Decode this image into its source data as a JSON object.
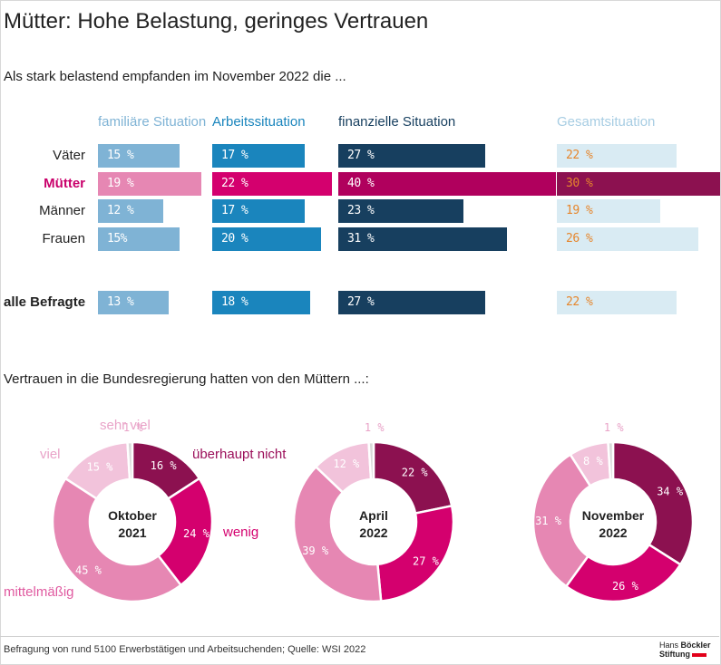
{
  "title": "Mütter: Hohe Belastung, geringes Vertrauen",
  "subtitle": "Als stark belastend empfanden im November 2022 die ...",
  "subtitle2": "Vertrauen in die Bundesregierung hatten von den Müttern ...:",
  "source": "Befragung von rund 5100 Erwerbstätigen und Arbeitsuchenden; Quelle: WSI 2022",
  "logo": {
    "line1a": "Hans ",
    "line1b": "Böckler",
    "line2": "Stiftung"
  },
  "colors": {
    "fam": "#7fb3d5",
    "fam_accent": "#e687b3",
    "arb": "#1a85bd",
    "arb_accent": "#d4006e",
    "fin": "#173f5f",
    "fin_accent": "#b0005d",
    "ges": "#d9ebf3",
    "ges_accent": "#8c1150",
    "ges_text": "#e6862c",
    "label_accent": "#c9006b"
  },
  "chart_data": [
    {
      "type": "bar",
      "categories": [
        "familiäre Situation",
        "Arbeitssituation",
        "finanzielle Situation",
        "Gesamtsituation"
      ],
      "rows": [
        {
          "label": "Väter",
          "values": [
            15,
            17,
            27,
            22
          ],
          "texts": [
            "15 %",
            "17 %",
            "27 %",
            "22 %"
          ]
        },
        {
          "label": "Mütter",
          "values": [
            19,
            22,
            40,
            30
          ],
          "texts": [
            "19 %",
            "22 %",
            "40 %",
            "30 %"
          ]
        },
        {
          "label": "Männer",
          "values": [
            12,
            17,
            23,
            19
          ],
          "texts": [
            "12 %",
            "17 %",
            "23 %",
            "19 %"
          ]
        },
        {
          "label": "Frauen",
          "values": [
            15,
            20,
            31,
            26
          ],
          "texts": [
            "15%",
            "20 %",
            "31 %",
            "26 %"
          ]
        },
        {
          "label": "alle Befragte",
          "values": [
            13,
            18,
            27,
            22
          ],
          "texts": [
            "13 %",
            "18 %",
            "27 %",
            "22 %"
          ]
        }
      ],
      "unit": "%"
    },
    {
      "type": "pie",
      "charts": [
        {
          "label_line1": "Oktober",
          "label_line2": "2021",
          "values": [
            16,
            24,
            45,
            15,
            1
          ],
          "texts": [
            "16 %",
            "24 %",
            "45 %",
            "15 %",
            "1 %"
          ]
        },
        {
          "label_line1": "April",
          "label_line2": "2022",
          "values": [
            22,
            27,
            39,
            12,
            1
          ],
          "texts": [
            "22 %",
            "27 %",
            "39 %",
            "12 %",
            "1 %"
          ]
        },
        {
          "label_line1": "November",
          "label_line2": "2022",
          "values": [
            34,
            26,
            31,
            8,
            1
          ],
          "texts": [
            "34 %",
            "26 %",
            "31 %",
            "8 %",
            "1 %"
          ]
        }
      ],
      "categories": [
        "überhaupt nicht",
        "wenig",
        "mittelmäßig",
        "viel",
        "sehr viel"
      ],
      "category_colors": [
        "#8c1150",
        "#d4006e",
        "#e687b3",
        "#f2c3db",
        "#8c1150"
      ],
      "legend_colors": [
        "#9b0f5a",
        "#d4006e",
        "#e05aa0",
        "#e9a3c8",
        "#e9a3c8"
      ]
    }
  ]
}
